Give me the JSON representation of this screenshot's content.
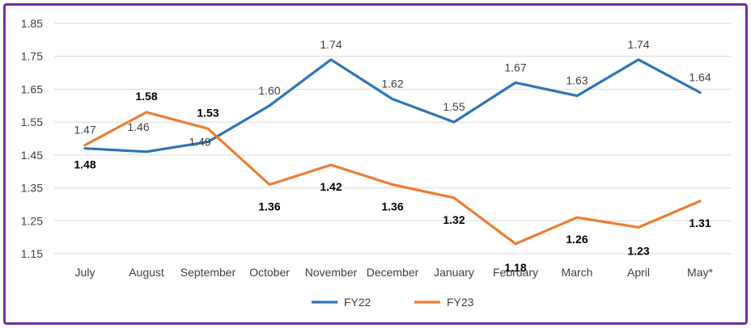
{
  "chart_data": {
    "type": "line",
    "title": "",
    "xlabel": "",
    "ylabel": "",
    "categories": [
      "July",
      "August",
      "September",
      "October",
      "November",
      "December",
      "January",
      "February",
      "March",
      "April",
      "May*"
    ],
    "ylim": [
      1.15,
      1.85
    ],
    "yticks": [
      "1.85",
      "1.75",
      "1.65",
      "1.55",
      "1.45",
      "1.35",
      "1.25",
      "1.15"
    ],
    "grid": true,
    "legend": "bottom-center",
    "series": [
      {
        "name": "FY22",
        "color": "#2e75b6",
        "values": [
          1.47,
          1.46,
          1.49,
          1.6,
          1.74,
          1.62,
          1.55,
          1.67,
          1.63,
          1.74,
          1.64
        ],
        "labels": [
          "1.47",
          "1.46",
          "1.49",
          "1.60",
          "1.74",
          "1.62",
          "1.55",
          "1.67",
          "1.63",
          "1.74",
          "1.64"
        ]
      },
      {
        "name": "FY23",
        "color": "#ed7d31",
        "values": [
          1.48,
          1.58,
          1.53,
          1.36,
          1.42,
          1.36,
          1.32,
          1.18,
          1.26,
          1.23,
          1.31
        ],
        "labels": [
          "1.48",
          "1.58",
          "1.53",
          "1.36",
          "1.42",
          "1.36",
          "1.32",
          "1.18",
          "1.26",
          "1.23",
          "1.31"
        ]
      }
    ]
  }
}
